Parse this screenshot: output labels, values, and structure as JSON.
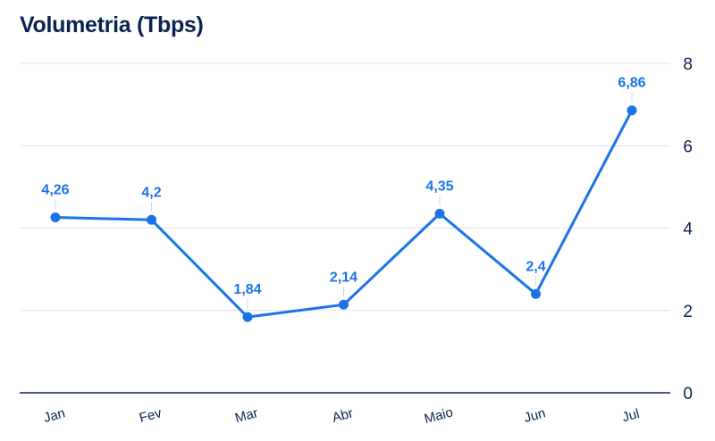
{
  "chart_data": {
    "type": "line",
    "title": "Volumetria (Tbps)",
    "xlabel": "",
    "ylabel": "",
    "categories": [
      "Jan",
      "Fev",
      "Mar",
      "Abr",
      "Maio",
      "Jun",
      "Jul"
    ],
    "series": [
      {
        "values": [
          4.26,
          4.2,
          1.84,
          2.14,
          4.35,
          2.4,
          6.86
        ],
        "labels": [
          "4,26",
          "4,2",
          "1,84",
          "2,14",
          "4,35",
          "2,4",
          "6,86"
        ],
        "color": "#1a73e8"
      }
    ],
    "ylim": [
      0,
      8
    ],
    "yticks": [
      0,
      2,
      4,
      6,
      8
    ],
    "y_axis_side": "right",
    "grid": true,
    "legend": "none",
    "colors": {
      "title": "#0b2350",
      "axis_text": "#0b2350",
      "line": "#1a73e8",
      "grid": "#dde3ec"
    }
  }
}
